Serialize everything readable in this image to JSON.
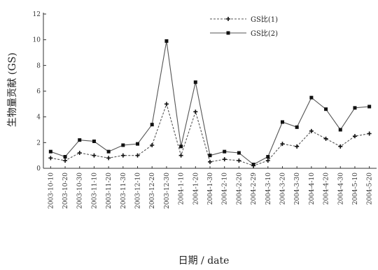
{
  "chart_data": {
    "type": "line",
    "ylabel": "生物量贡献 (GS)",
    "xlabel": "日期 / date",
    "ylim": [
      0,
      12
    ],
    "yticks": [
      0,
      2,
      4,
      6,
      8,
      10,
      12
    ],
    "legend_position": "top-right",
    "categories": [
      "2003-10-10",
      "2003-10-20",
      "2003-10-30",
      "2003-11-10",
      "2003-11-20",
      "2003-11-30",
      "2003-12-10",
      "2003-12-20",
      "2003-12-30",
      "2004-1-10",
      "2004-1-20",
      "2004-1-30",
      "2004-2-10",
      "2004-2-20",
      "2004-2-29",
      "2004-3-10",
      "2004-3-20",
      "2004-3-30",
      "2004-4-10",
      "2004-4-20",
      "2004-4-30",
      "2004-5-10",
      "2004-5-20"
    ],
    "series": [
      {
        "name": "GS比(1)",
        "style": "dashed",
        "marker": "plus",
        "values": [
          0.8,
          0.6,
          1.2,
          1.0,
          0.8,
          1.0,
          1.0,
          1.8,
          5.0,
          1.0,
          4.4,
          0.5,
          0.7,
          0.6,
          0.2,
          0.6,
          1.9,
          1.7,
          2.9,
          2.3,
          1.7,
          2.5,
          2.7
        ]
      },
      {
        "name": "GS比(2)",
        "style": "solid",
        "marker": "square",
        "values": [
          1.3,
          0.9,
          2.2,
          2.1,
          1.3,
          1.8,
          1.9,
          3.4,
          9.9,
          1.7,
          6.7,
          1.0,
          1.3,
          1.2,
          0.3,
          0.9,
          3.6,
          3.2,
          5.5,
          4.6,
          3.0,
          4.7,
          4.8
        ]
      }
    ],
    "colors": {
      "line": "#555555",
      "marker": "#111111",
      "axis": "#333333"
    }
  }
}
